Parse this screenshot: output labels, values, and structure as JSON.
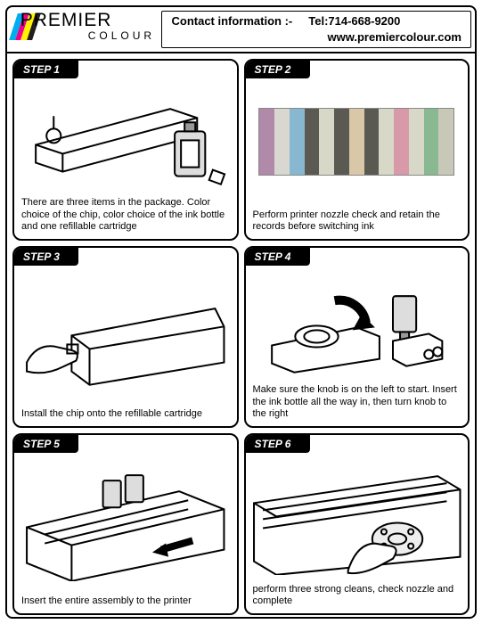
{
  "header": {
    "logo": {
      "text_main": "PREMIER",
      "text_sub": "COLOUR",
      "stripe_colors": [
        "#00aeef",
        "#ec008c",
        "#fff200",
        "#231f20"
      ]
    },
    "contact": {
      "label": "Contact information :-",
      "tel_label": "Tel: ",
      "tel": "714-668-9200",
      "web": "www.premiercolour.com"
    }
  },
  "steps": [
    {
      "label": "STEP 1",
      "caption": "There are three items in the package. Color choice of the chip, color choice of the ink bottle and one refillable cartridge"
    },
    {
      "label": "STEP  2",
      "caption": "Perform printer nozzle check and retain the records before switching ink",
      "nozzle_colors": [
        "#b08aa8",
        "#d8d8d0",
        "#88b8d0",
        "#5a5a52",
        "#d8d8c8",
        "#5a5a52",
        "#d8c8a8",
        "#5a5a52",
        "#d8d8c8",
        "#d89aa8",
        "#d8d8c8",
        "#8ab890",
        "#c8c8b8"
      ]
    },
    {
      "label": "STEP 3",
      "caption": "Install the chip onto the refillable cartridge"
    },
    {
      "label": "STEP  4",
      "caption": "Make sure the knob is on the left to start. Insert the ink bottle all the way in, then turn knob to the right"
    },
    {
      "label": "STEP  5",
      "caption": "Insert the entire assembly to the printer"
    },
    {
      "label": "STEP  6",
      "caption": "perform three strong cleans, check nozzle and complete"
    }
  ]
}
